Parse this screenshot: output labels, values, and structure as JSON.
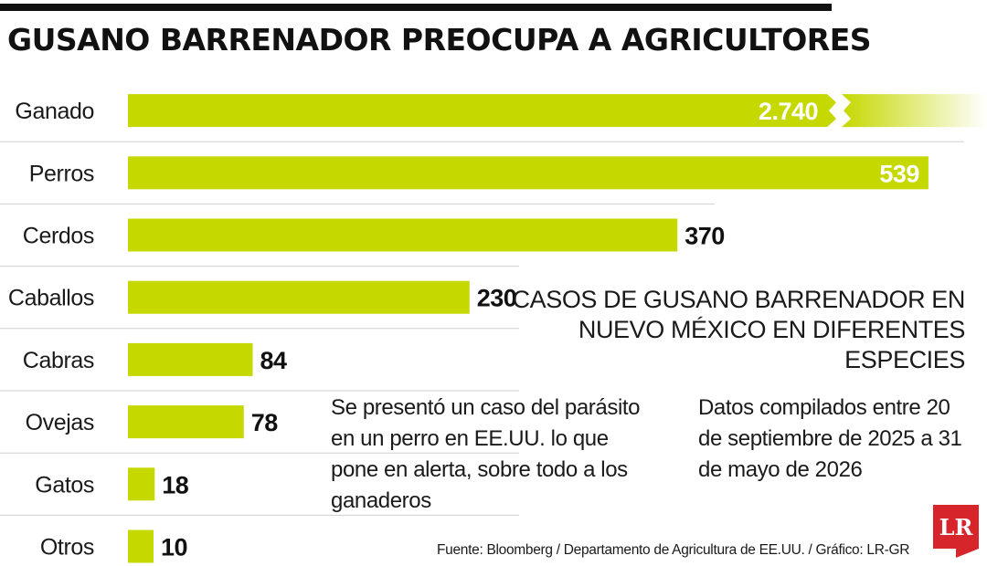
{
  "title": "GUSANO BARRENADOR PREOCUPA A AGRICULTORES",
  "subtitle": "CASOS DE GUSANO BARRENADOR EN NUEVO MÉXICO EN DIFERENTES ESPECIES",
  "note": "Se presentó un caso del parásito en un perro en EE.UU. lo que pone en alerta, sobre todo a los ganaderos",
  "period": "Datos compilados entre 20 de septiembre de 2025 a 31 de mayo de 2026",
  "source": "Fuente: Bloomberg / Departamento de Agricultura de EE.UU. / Gráfico: LR-GR",
  "logo_text": "LR",
  "colors": {
    "bar": "#c5d800",
    "label_inside": "#ffffff",
    "label_outside": "#111111",
    "logo": "#d7262b"
  },
  "chart_data": {
    "type": "bar",
    "orientation": "horizontal",
    "categories": [
      "Ganado",
      "Perros",
      "Cerdos",
      "Caballos",
      "Cabras",
      "Ovejas",
      "Gatos",
      "Otros"
    ],
    "values": [
      2740,
      539,
      370,
      230,
      84,
      78,
      18,
      10
    ],
    "value_labels": [
      "2.740",
      "539",
      "370",
      "230",
      "84",
      "78",
      "18",
      "10"
    ],
    "broken_axis_bars": [
      "Ganado"
    ],
    "grid": false,
    "legend": "none"
  }
}
